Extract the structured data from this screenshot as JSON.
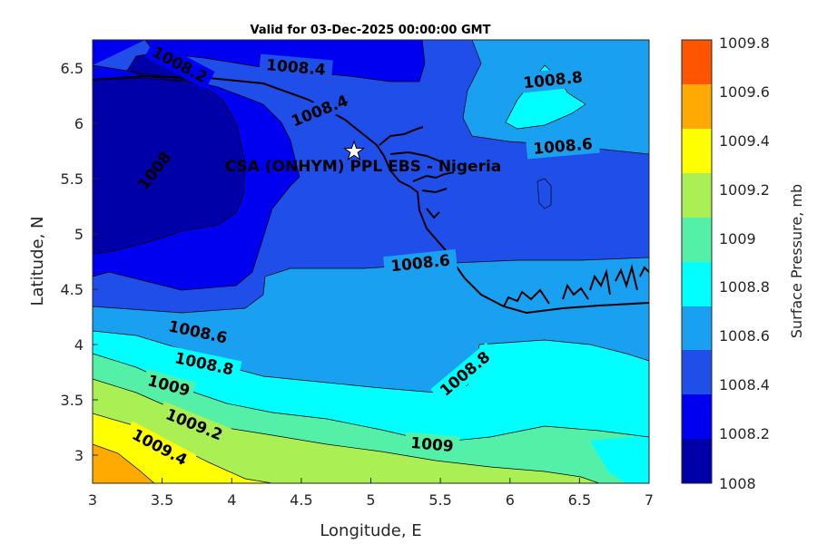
{
  "title": "Valid for 03-Dec-2025 00:00:00 GMT",
  "xlabel": "Longitude, E",
  "ylabel": "Latitude, N",
  "colorbar_label": "Surface Pressure, mb",
  "x_ticks": [
    "3",
    "3.5",
    "4",
    "4.5",
    "5",
    "5.5",
    "6",
    "6.5",
    "7"
  ],
  "y_ticks": [
    "3",
    "3.5",
    "4",
    "4.5",
    "5",
    "5.5",
    "6",
    "6.5"
  ],
  "colorbar_ticks": [
    "1008",
    "1008.2",
    "1008.4",
    "1008.6",
    "1008.8",
    "1009",
    "1009.2",
    "1009.4",
    "1009.6",
    "1009.8"
  ],
  "site_label": "CSA (ONHYM) PPL EBS - Nigeria",
  "contour_labels": [
    "1008.2",
    "1008.4",
    "1008.4",
    "1008",
    "1008.8",
    "1008.6",
    "1008.6",
    "1008.6",
    "1008.8",
    "1008.8",
    "1009",
    "1009",
    "1009.2",
    "1009.4"
  ],
  "colors": {
    "1008": "#0000a8",
    "1008.2": "#0000f0",
    "1008.4": "#1f4fe8",
    "1008.6": "#1aa0f0",
    "1008.8": "#00ffff",
    "1009": "#55f0a8",
    "1009.2": "#aaf055",
    "1009.4": "#ffff00",
    "1009.6": "#ffaa00",
    "1009.8": "#ff5500"
  },
  "chart_data": {
    "type": "filled-contour map",
    "title": "Valid for 03-Dec-2025 00:00:00 GMT",
    "xlabel": "Longitude, E",
    "ylabel": "Latitude, N",
    "xlim": [
      3,
      7
    ],
    "ylim": [
      2.75,
      6.75
    ],
    "colorbar": {
      "label": "Surface Pressure, mb",
      "levels": [
        1008,
        1008.2,
        1008.4,
        1008.6,
        1008.8,
        1009,
        1009.2,
        1009.4,
        1009.6,
        1009.8
      ]
    },
    "site": {
      "name": "CSA (ONHYM) PPL EBS - Nigeria",
      "lon": 4.88,
      "lat": 5.75,
      "marker": "white star"
    }
  }
}
